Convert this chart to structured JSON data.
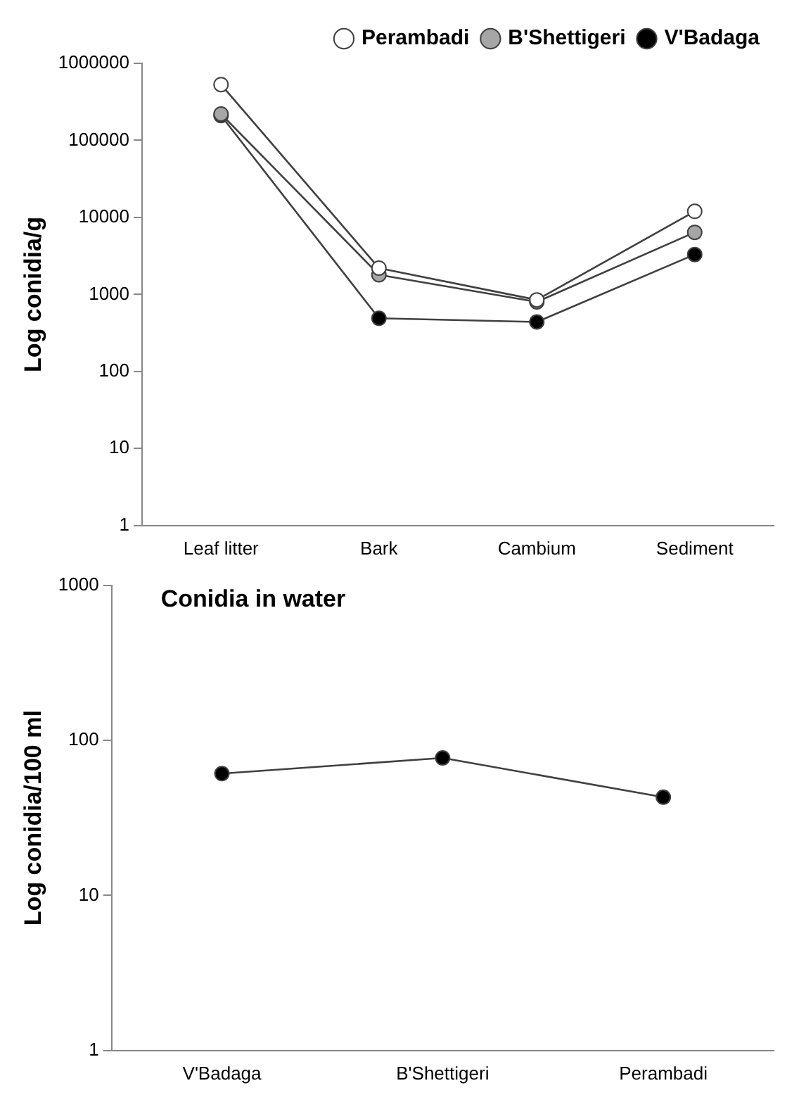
{
  "chart_data": [
    {
      "type": "line",
      "ylabel": "Log conidia/g",
      "categories": [
        "Leaf litter",
        "Bark",
        "Cambium",
        "Sediment"
      ],
      "log": "y",
      "ylim": [
        1,
        1000000
      ],
      "yticks": [
        1,
        10,
        100,
        1000,
        10000,
        100000,
        1000000
      ],
      "grid": false,
      "legend": "top right",
      "marker": "circle",
      "line_style": "solid",
      "series": [
        {
          "name": "Perambadi",
          "color": "#ffffff",
          "values": [
            530000,
            2200,
            850,
            12000
          ]
        },
        {
          "name": "B'Shettigeri",
          "color": "#a6a6a6",
          "values": [
            220000,
            1800,
            800,
            6400
          ]
        },
        {
          "name": "V'Badaga",
          "color": "#000000",
          "values": [
            210000,
            490,
            440,
            3300
          ]
        }
      ]
    },
    {
      "type": "line",
      "title": "Conidia in water",
      "ylabel": "Log conidia/100 ml",
      "categories": [
        "V'Badaga",
        "B'Shettigeri",
        "Perambadi"
      ],
      "log": "y",
      "ylim": [
        1,
        1000
      ],
      "yticks": [
        1,
        10,
        100,
        1000
      ],
      "grid": false,
      "legend": false,
      "marker": "circle",
      "line_style": "solid",
      "series": [
        {
          "color": "#000000",
          "values": [
            61,
            77,
            43
          ]
        }
      ]
    }
  ]
}
